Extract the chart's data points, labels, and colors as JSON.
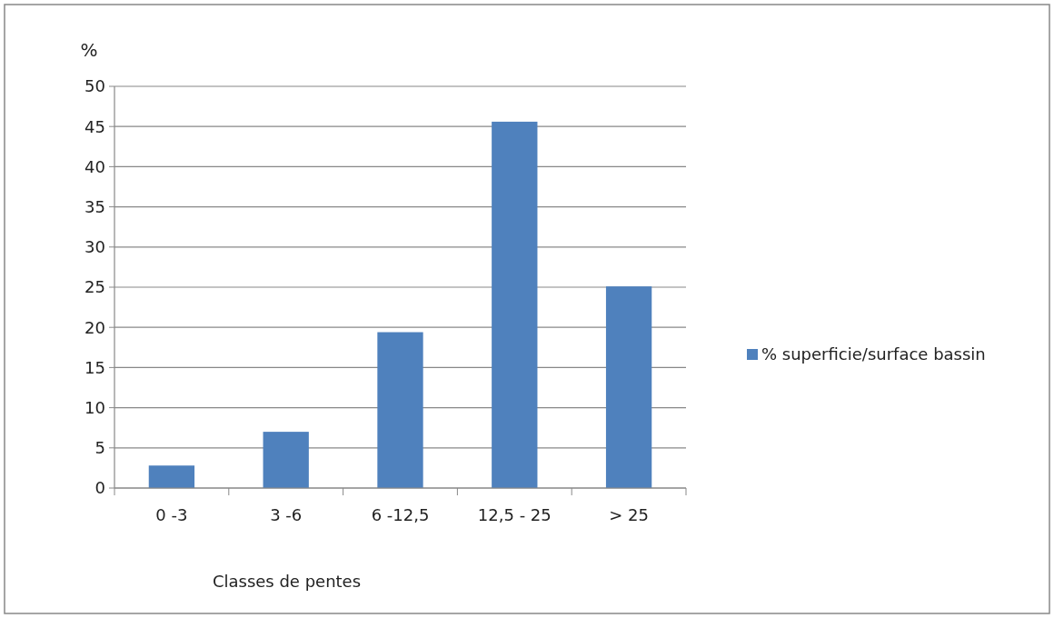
{
  "chart_data": {
    "type": "bar",
    "xlabel": "Classes de pentes",
    "ylabel": "%",
    "categories": [
      "0 -3",
      "3 -6",
      "6 -12,5",
      "12,5 - 25",
      "> 25"
    ],
    "series": [
      {
        "name": "% superficie/surface bassin",
        "color": "#4f81bd",
        "values": [
          2.8,
          7.0,
          19.4,
          45.6,
          25.1
        ]
      }
    ],
    "ylim": [
      0,
      50
    ],
    "yticks": [
      0,
      5,
      10,
      15,
      20,
      25,
      30,
      35,
      40,
      45,
      50
    ],
    "grid": "y",
    "legend": "right"
  }
}
